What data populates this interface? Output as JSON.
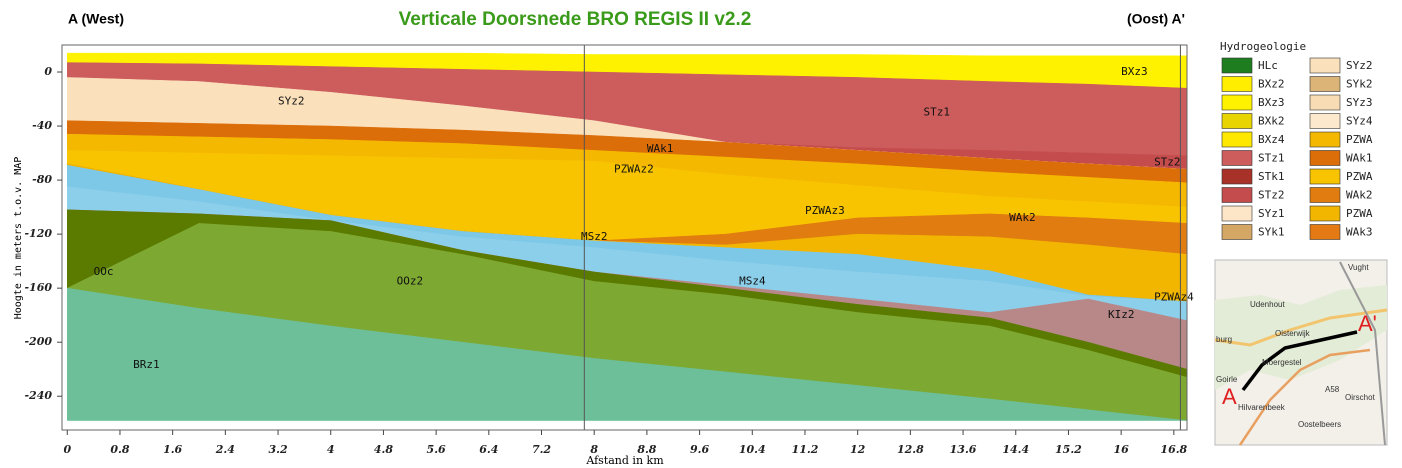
{
  "chart_data": {
    "type": "cross-section",
    "title": "Verticale Doorsnede BRO REGIS II v2.2",
    "left_label": "A  (West)",
    "right_label": "(Oost) A'",
    "x_label": "Afstand in km",
    "y_label": "Hoogte in meters t.o.v. MAP",
    "xlim": [
      -0.08,
      17.0
    ],
    "ylim": [
      -265,
      20
    ],
    "xticks": [
      0,
      0.8,
      1.6,
      2.4,
      3.2,
      4,
      4.8,
      5.6,
      6.4,
      7.2,
      8,
      8.8,
      9.6,
      10.4,
      11.2,
      12,
      12.8,
      13.6,
      14.4,
      15.2,
      16,
      16.8
    ],
    "yticks": [
      0,
      -40,
      -80,
      -120,
      -160,
      -200,
      -240
    ],
    "vlines": [
      7.85,
      16.9
    ],
    "x": [
      0,
      2,
      4,
      6,
      8,
      10,
      12,
      14,
      15.5,
      17
    ],
    "bottom": -258,
    "layers": [
      {
        "name": "BXz3",
        "color": "#fff200",
        "top": [
          14,
          14,
          14,
          14,
          13,
          13,
          13,
          12,
          12,
          12
        ]
      },
      {
        "name": "STz1",
        "color": "#cd5c5c",
        "top": [
          7,
          6,
          4,
          2,
          0,
          -2,
          -4,
          -7,
          -9,
          -12
        ]
      },
      {
        "name": "STz2",
        "color": "#c44c4c",
        "top": [
          -4,
          -7,
          -15,
          -25,
          -36,
          -52,
          -56,
          -58,
          -60,
          -62
        ]
      },
      {
        "name": "SYz2",
        "color": "#fbe0bc",
        "top": [
          -4,
          -7,
          -15,
          -25,
          -36,
          -52,
          -58,
          -64,
          -68,
          -72
        ]
      },
      {
        "name": "WAk1",
        "color": "#dc6e0a",
        "top": [
          -36,
          -38,
          -40,
          -43,
          -47,
          -52,
          -58,
          -64,
          -68,
          -72
        ]
      },
      {
        "name": "PZWAz2",
        "color": "#f5b800",
        "top": [
          -46,
          -48,
          -50,
          -53,
          -58,
          -63,
          -68,
          -74,
          -78,
          -82
        ]
      },
      {
        "name": "PZWAz3",
        "color": "#f8c400",
        "top": [
          -58,
          -60,
          -62,
          -64,
          -66,
          -76,
          -84,
          -92,
          -96,
          -100
        ]
      },
      {
        "name": "WAk2",
        "color": "#e07c10",
        "top": [
          -68,
          -87,
          -106,
          -118,
          -125,
          -120,
          -108,
          -105,
          -108,
          -112
        ]
      },
      {
        "name": "PZWAz4",
        "color": "#f2b600",
        "top": [
          -68,
          -87,
          -106,
          -118,
          -125,
          -128,
          -120,
          -122,
          -128,
          -135
        ]
      },
      {
        "name": "MSz2",
        "color": "#7dc8e6",
        "top": [
          -69,
          -87,
          -106,
          -118,
          -125,
          -130,
          -135,
          -147,
          -165,
          -170
        ]
      },
      {
        "name": "MSz4",
        "color": "#8ccfea",
        "top": [
          -85,
          -96,
          -110,
          -122,
          -130,
          -140,
          -148,
          -155,
          -166,
          -170
        ]
      },
      {
        "name": "KIz2",
        "color": "#b88888",
        "top": [
          -102,
          -105,
          -110,
          -132,
          -148,
          -158,
          -168,
          -178,
          -168,
          -184
        ]
      },
      {
        "name": "OOc",
        "color": "#5b7a00",
        "top": [
          -102,
          -105,
          -110,
          -132,
          -148,
          -160,
          -172,
          -182,
          -200,
          -220
        ]
      },
      {
        "name": "OOz2",
        "color": "#7da832",
        "top": [
          -160,
          -112,
          -118,
          -135,
          -155,
          -165,
          -178,
          -188,
          -206,
          -226
        ]
      },
      {
        "name": "BRz1",
        "color": "#6cbf98",
        "top": [
          -160,
          -175,
          -188,
          -200,
          -212,
          -222,
          -232,
          -242,
          -250,
          -258
        ]
      }
    ],
    "annotations": [
      {
        "text": "SYz2",
        "x": 3.2,
        "y": -22
      },
      {
        "text": "WAk1",
        "x": 8.8,
        "y": -57
      },
      {
        "text": "PZWAz2",
        "x": 8.3,
        "y": -72
      },
      {
        "text": "STz1",
        "x": 13,
        "y": -30
      },
      {
        "text": "BXz3",
        "x": 16,
        "y": 0
      },
      {
        "text": "STz2",
        "x": 16.5,
        "y": -67
      },
      {
        "text": "PZWAz3",
        "x": 11.2,
        "y": -103
      },
      {
        "text": "WAk2",
        "x": 14.3,
        "y": -108
      },
      {
        "text": "MSz2",
        "x": 7.8,
        "y": -122
      },
      {
        "text": "MSz4",
        "x": 10.2,
        "y": -155
      },
      {
        "text": "PZWAz4",
        "x": 16.5,
        "y": -167
      },
      {
        "text": "KIz2",
        "x": 15.8,
        "y": -180
      },
      {
        "text": "OOc",
        "x": 0.4,
        "y": -148
      },
      {
        "text": "OOz2",
        "x": 5,
        "y": -155
      },
      {
        "text": "BRz1",
        "x": 1,
        "y": -217
      }
    ],
    "legend_title": "Hydrogeologie",
    "legend": [
      {
        "name": "HLc",
        "color": "#1e7d1e"
      },
      {
        "name": "BXz2",
        "color": "#ffee00"
      },
      {
        "name": "BXz3",
        "color": "#fff200"
      },
      {
        "name": "BXk2",
        "color": "#e8d400"
      },
      {
        "name": "BXz4",
        "color": "#ffe800"
      },
      {
        "name": "STz1",
        "color": "#cd5c5c"
      },
      {
        "name": "STk1",
        "color": "#a83228"
      },
      {
        "name": "STz2",
        "color": "#c44c4c"
      },
      {
        "name": "SYz1",
        "color": "#fde6c8"
      },
      {
        "name": "SYk1",
        "color": "#d4a864"
      },
      {
        "name": "SYz2",
        "color": "#fbe0bc"
      },
      {
        "name": "SYk2",
        "color": "#dcb478"
      },
      {
        "name": "SYz3",
        "color": "#f8dcb4"
      },
      {
        "name": "SYz4",
        "color": "#fce8cc"
      },
      {
        "name": "PZWA",
        "color": "#f5b800"
      },
      {
        "name": "WAk1",
        "color": "#dc6e0a"
      },
      {
        "name": "PZWA",
        "color": "#f8c400"
      },
      {
        "name": "WAk2",
        "color": "#e07c10"
      },
      {
        "name": "PZWA",
        "color": "#f2b600"
      },
      {
        "name": "WAk3",
        "color": "#e47a14"
      }
    ]
  },
  "map": {
    "labels": [
      "Vught",
      "Udenhout",
      "Oisterwijk",
      "burg",
      "Moergestel",
      "Goirle",
      "Hilvarenbeek",
      "Oirschot",
      "Oostelbeers",
      "A58",
      "A",
      "A'"
    ]
  }
}
